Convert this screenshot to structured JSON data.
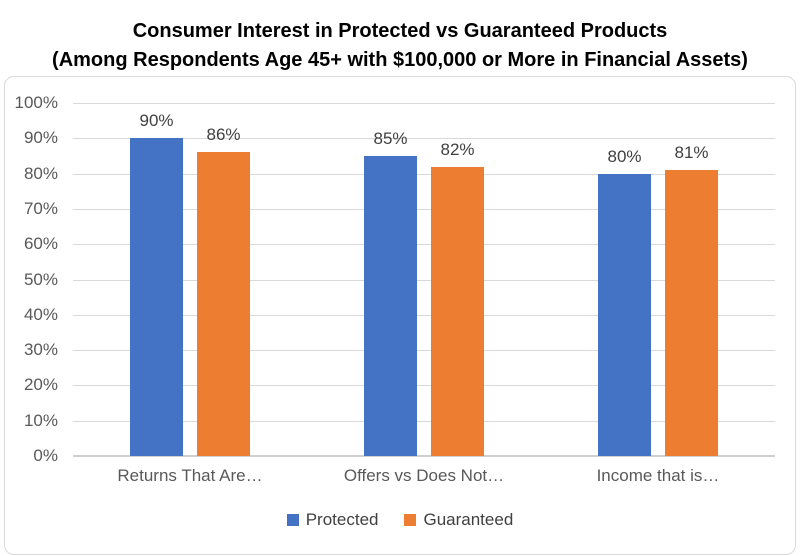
{
  "title": {
    "line1": "Consumer Interest in Protected vs Guaranteed Products",
    "line2": "(Among Respondents Age 45+ with $100,000 or More in Financial Assets)"
  },
  "chart_data": {
    "type": "bar",
    "title": "Consumer Interest in Protected vs Guaranteed Products",
    "subtitle": "(Among Respondents Age 45+ with $100,000 or More in Financial Assets)",
    "categories": [
      "Returns That Are…",
      "Offers vs Does Not…",
      "Income that is…"
    ],
    "series": [
      {
        "name": "Protected",
        "color": "#4472C4",
        "values": [
          90,
          85,
          80
        ],
        "labels": [
          "90%",
          "85%",
          "80%"
        ]
      },
      {
        "name": "Guaranteed",
        "color": "#ED7D31",
        "values": [
          86,
          82,
          81
        ],
        "labels": [
          "86%",
          "82%",
          "81%"
        ]
      }
    ],
    "ylim": [
      0,
      100
    ],
    "ytick_step": 10,
    "ytick_labels": [
      "0%",
      "10%",
      "20%",
      "30%",
      "40%",
      "50%",
      "60%",
      "70%",
      "80%",
      "90%",
      "100%"
    ],
    "grid": true,
    "legend_position": "bottom",
    "legend": [
      "Protected",
      "Guaranteed"
    ]
  },
  "colors": {
    "protected": "#4472C4",
    "guaranteed": "#ED7D31",
    "gridline": "#D9D9D9",
    "axis_line": "#CFCFCF",
    "axis_label": "#595959",
    "data_label": "#404040",
    "title": "#000000",
    "frame_border": "#D9D9D9"
  }
}
